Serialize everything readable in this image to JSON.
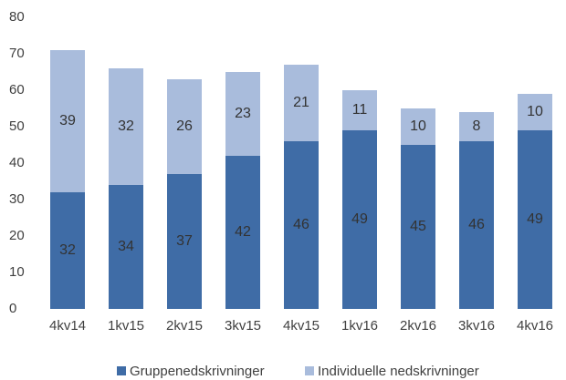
{
  "chart_data": {
    "type": "stacked_bar",
    "categories": [
      "4kv14",
      "1kv15",
      "2kv15",
      "3kv15",
      "4kv15",
      "1kv16",
      "2kv16",
      "3kv16",
      "4kv16"
    ],
    "series": [
      {
        "name": "Gruppenedskrivninger",
        "color": "#3f6ca6",
        "values": [
          32,
          34,
          37,
          42,
          46,
          49,
          45,
          46,
          49
        ]
      },
      {
        "name": "Individuelle nedskrivninger",
        "color": "#a9bcdc",
        "values": [
          39,
          32,
          26,
          23,
          21,
          11,
          10,
          8,
          10
        ]
      }
    ],
    "ylim": [
      0,
      80
    ],
    "yticks": [
      0,
      10,
      20,
      30,
      40,
      50,
      60,
      70,
      80
    ],
    "grid": false,
    "legend": "bottom"
  }
}
